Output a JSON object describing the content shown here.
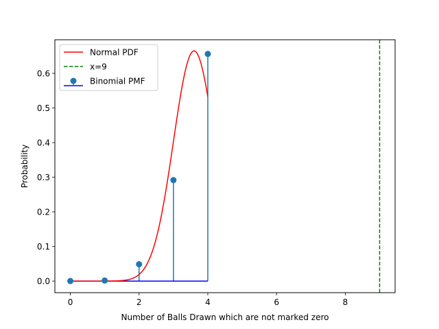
{
  "chart_data": {
    "type": "line",
    "title": "",
    "xlabel": "Number of Balls Drawn which are not marked zero",
    "ylabel": "Probability",
    "xlim": [
      -0.45,
      9.45
    ],
    "ylim": [
      -0.0335,
      0.697
    ],
    "xticks": [
      0,
      2,
      4,
      6,
      8
    ],
    "yticks": [
      0.0,
      0.1,
      0.2,
      0.3,
      0.4,
      0.5,
      0.6
    ],
    "xtick_labels": [
      "0",
      "2",
      "4",
      "6",
      "8"
    ],
    "ytick_labels": [
      "0.0",
      "0.1",
      "0.2",
      "0.3",
      "0.4",
      "0.5",
      "0.6"
    ],
    "grid": false,
    "legend_position": "top-left",
    "legend": [
      {
        "label": "Normal PDF",
        "kind": "line",
        "color": "#ff0000"
      },
      {
        "label": "x=9",
        "kind": "dashed",
        "color": "#008000"
      },
      {
        "label": "Binomial PMF",
        "kind": "stem",
        "color": "#1f77b4",
        "base_color": "#0000ff"
      }
    ],
    "series": [
      {
        "name": "Normal PDF",
        "color": "#ff0000",
        "mu": 3.6,
        "sigma": 0.6,
        "x_range": [
          0,
          4
        ]
      },
      {
        "name": "x=9",
        "color": "#008000",
        "x": 9
      },
      {
        "name": "Binomial PMF",
        "color": "#1f77b4",
        "baseline_color": "#0000ff",
        "x": [
          0,
          1,
          2,
          3,
          4
        ],
        "y": [
          0.0001,
          0.0016,
          0.0486,
          0.2916,
          0.6561
        ]
      }
    ]
  }
}
